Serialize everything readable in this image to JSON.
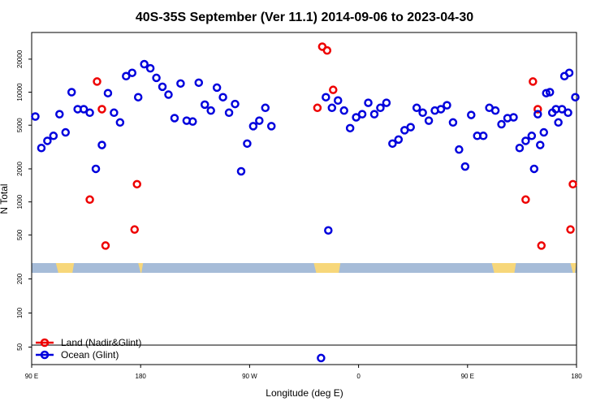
{
  "chart_data": {
    "type": "scatter",
    "title": "40S-35S September (Ver 11.1)   2014-09-06 to 2023-04-30",
    "xlabel": "Longitude (deg E)",
    "ylabel": "N Total",
    "x_axis_note": "longitude runs from 90 E across the dateline (180) to 180; values stored as degrees east, continuing past 180",
    "xlim": [
      90,
      540
    ],
    "x_ticks": [
      {
        "value": 90,
        "label": "90 E"
      },
      {
        "value": 180,
        "label": "180"
      },
      {
        "value": 270,
        "label": "90 W"
      },
      {
        "value": 360,
        "label": "0"
      },
      {
        "value": 450,
        "label": "90 E"
      },
      {
        "value": 540,
        "label": "180"
      }
    ],
    "y_scale": "log (upper panel), linear-compressed (lower panel)",
    "upper_ylim": [
      250,
      35000
    ],
    "lower_ylim": [
      35,
      250
    ],
    "y_ticks_upper": [
      {
        "value": 500,
        "label": "500"
      },
      {
        "value": 1000,
        "label": "1000"
      },
      {
        "value": 2000,
        "label": "2000"
      },
      {
        "value": 5000,
        "label": "5000"
      },
      {
        "value": 10000,
        "label": "10000"
      },
      {
        "value": 20000,
        "label": "20000"
      }
    ],
    "y_ticks_lower": [
      {
        "value": 50,
        "label": "50"
      },
      {
        "value": 100,
        "label": "100"
      },
      {
        "value": 200,
        "label": "200"
      }
    ],
    "land_band_color": "#a6bcd8",
    "land_fill_color": "#f7d77a",
    "legend_position": "bottom-left",
    "grid": false,
    "series": [
      {
        "name": "Land (Nadir&Glint)",
        "color": "#ee0000",
        "points": [
          {
            "x": 138,
            "y": 1050
          },
          {
            "x": 144,
            "y": 12500
          },
          {
            "x": 148,
            "y": 7000
          },
          {
            "x": 151,
            "y": 400
          },
          {
            "x": 175,
            "y": 560
          },
          {
            "x": 177,
            "y": 1450
          },
          {
            "x": 326,
            "y": 7200
          },
          {
            "x": 330,
            "y": 26000
          },
          {
            "x": 334,
            "y": 24000
          },
          {
            "x": 339,
            "y": 10500
          },
          {
            "x": 498,
            "y": 1050
          },
          {
            "x": 504,
            "y": 12500
          },
          {
            "x": 508,
            "y": 7000
          },
          {
            "x": 511,
            "y": 400
          },
          {
            "x": 535,
            "y": 560
          },
          {
            "x": 537,
            "y": 1450
          }
        ]
      },
      {
        "name": "Ocean (Glint)",
        "color": "#0000dd",
        "points": [
          {
            "x": 93,
            "y": 6000
          },
          {
            "x": 98,
            "y": 3100
          },
          {
            "x": 103,
            "y": 3600
          },
          {
            "x": 108,
            "y": 4000
          },
          {
            "x": 113,
            "y": 6300
          },
          {
            "x": 118,
            "y": 4300
          },
          {
            "x": 123,
            "y": 10000
          },
          {
            "x": 128,
            "y": 7000
          },
          {
            "x": 133,
            "y": 7000
          },
          {
            "x": 138,
            "y": 6500
          },
          {
            "x": 143,
            "y": 2000
          },
          {
            "x": 148,
            "y": 3300
          },
          {
            "x": 153,
            "y": 9800
          },
          {
            "x": 158,
            "y": 6500
          },
          {
            "x": 163,
            "y": 5300
          },
          {
            "x": 168,
            "y": 14000
          },
          {
            "x": 173,
            "y": 15000
          },
          {
            "x": 178,
            "y": 9000
          },
          {
            "x": 183,
            "y": 18000
          },
          {
            "x": 188,
            "y": 16500
          },
          {
            "x": 193,
            "y": 13500
          },
          {
            "x": 198,
            "y": 11200
          },
          {
            "x": 203,
            "y": 9500
          },
          {
            "x": 208,
            "y": 5800
          },
          {
            "x": 213,
            "y": 12000
          },
          {
            "x": 218,
            "y": 5500
          },
          {
            "x": 223,
            "y": 5400
          },
          {
            "x": 228,
            "y": 12200
          },
          {
            "x": 233,
            "y": 7700
          },
          {
            "x": 238,
            "y": 6800
          },
          {
            "x": 243,
            "y": 11000
          },
          {
            "x": 248,
            "y": 9000
          },
          {
            "x": 253,
            "y": 6500
          },
          {
            "x": 258,
            "y": 7800
          },
          {
            "x": 263,
            "y": 1900
          },
          {
            "x": 268,
            "y": 3400
          },
          {
            "x": 273,
            "y": 4900
          },
          {
            "x": 278,
            "y": 5500
          },
          {
            "x": 283,
            "y": 7200
          },
          {
            "x": 288,
            "y": 4900
          },
          {
            "x": 333,
            "y": 9000
          },
          {
            "x": 338,
            "y": 7200
          },
          {
            "x": 343,
            "y": 8400
          },
          {
            "x": 348,
            "y": 6800
          },
          {
            "x": 353,
            "y": 4700
          },
          {
            "x": 358,
            "y": 5900
          },
          {
            "x": 363,
            "y": 6300
          },
          {
            "x": 368,
            "y": 8000
          },
          {
            "x": 373,
            "y": 6300
          },
          {
            "x": 378,
            "y": 7200
          },
          {
            "x": 383,
            "y": 8000
          },
          {
            "x": 388,
            "y": 3400
          },
          {
            "x": 393,
            "y": 3700
          },
          {
            "x": 398,
            "y": 4500
          },
          {
            "x": 403,
            "y": 4800
          },
          {
            "x": 408,
            "y": 7200
          },
          {
            "x": 413,
            "y": 6500
          },
          {
            "x": 418,
            "y": 5500
          },
          {
            "x": 423,
            "y": 6800
          },
          {
            "x": 428,
            "y": 7000
          },
          {
            "x": 433,
            "y": 7600
          },
          {
            "x": 438,
            "y": 5300
          },
          {
            "x": 443,
            "y": 3000
          },
          {
            "x": 448,
            "y": 2100
          },
          {
            "x": 453,
            "y": 6200
          },
          {
            "x": 458,
            "y": 4000
          },
          {
            "x": 463,
            "y": 4000
          },
          {
            "x": 468,
            "y": 7200
          },
          {
            "x": 473,
            "y": 6800
          },
          {
            "x": 478,
            "y": 5100
          },
          {
            "x": 483,
            "y": 5800
          },
          {
            "x": 488,
            "y": 5900
          },
          {
            "x": 493,
            "y": 3100
          },
          {
            "x": 498,
            "y": 3600
          },
          {
            "x": 503,
            "y": 4000
          },
          {
            "x": 508,
            "y": 6300
          },
          {
            "x": 513,
            "y": 4300
          },
          {
            "x": 518,
            "y": 10000
          },
          {
            "x": 523,
            "y": 7000
          },
          {
            "x": 528,
            "y": 7000
          },
          {
            "x": 533,
            "y": 6500
          },
          {
            "x": 505,
            "y": 2000
          },
          {
            "x": 510,
            "y": 3300
          },
          {
            "x": 515,
            "y": 9800
          },
          {
            "x": 520,
            "y": 6500
          },
          {
            "x": 525,
            "y": 5300
          },
          {
            "x": 530,
            "y": 14000
          },
          {
            "x": 534,
            "y": 15000
          },
          {
            "x": 539,
            "y": 9000
          },
          {
            "x": 335,
            "y": 550
          },
          {
            "x": 329,
            "y": 40
          }
        ]
      }
    ]
  }
}
